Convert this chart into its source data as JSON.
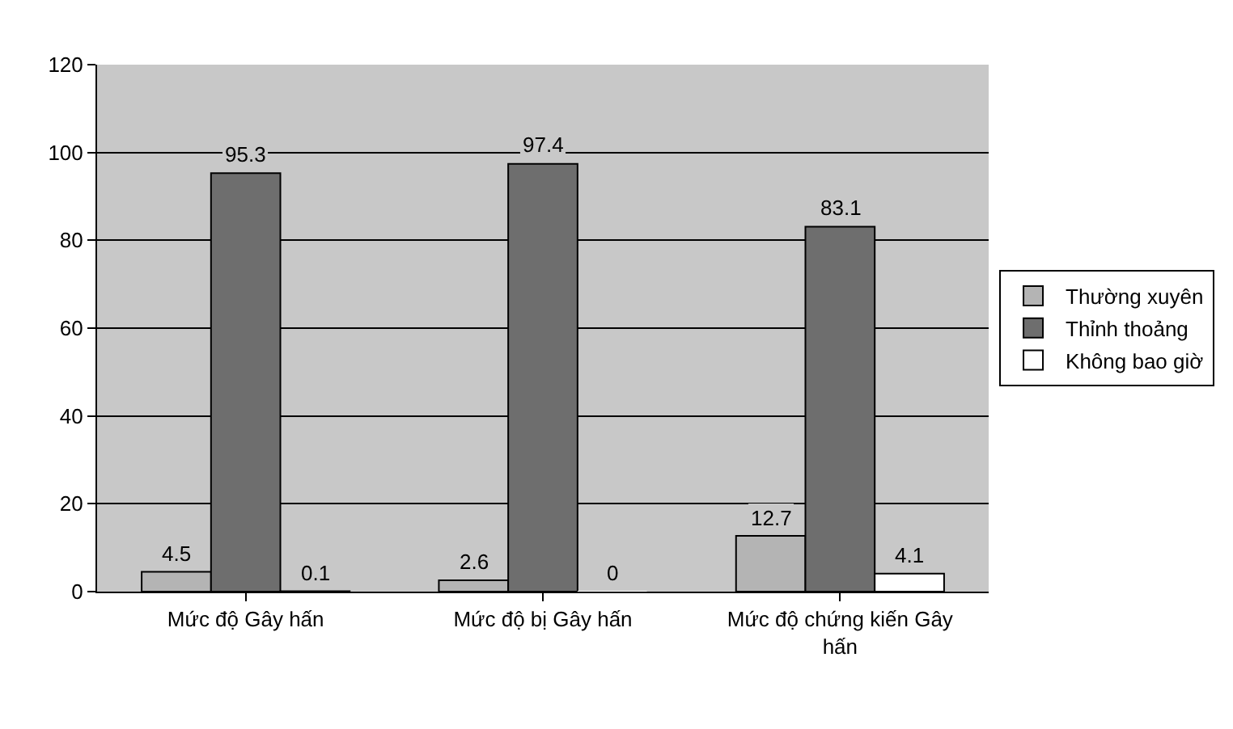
{
  "chart_data": {
    "type": "bar",
    "categories": [
      "Mức độ Gây hấn",
      "Mức độ bị Gây hấn",
      "Mức độ chứng kiến Gây hấn"
    ],
    "series": [
      {
        "name": "Thường xuyên",
        "color": "#b4b4b4",
        "values": [
          4.5,
          2.6,
          12.7
        ]
      },
      {
        "name": "Thỉnh thoảng",
        "color": "#6e6e6e",
        "values": [
          95.3,
          97.4,
          83.1
        ]
      },
      {
        "name": "Không bao giờ",
        "color": "#ffffff",
        "values": [
          0.1,
          0,
          4.1
        ]
      }
    ],
    "ylim": [
      0,
      120
    ],
    "yticks": [
      0,
      20,
      40,
      60,
      80,
      100,
      120
    ],
    "grid": "y",
    "legend": "right",
    "data_labels": true
  }
}
